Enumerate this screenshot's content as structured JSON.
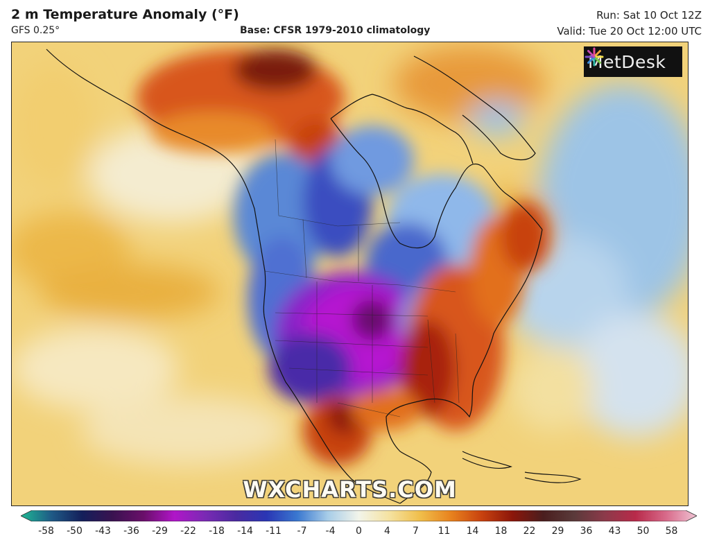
{
  "header": {
    "title": "2 m Temperature Anomaly (°F)",
    "model": "GFS 0.25°",
    "base": "Base: CFSR 1979-2010 climatology",
    "run": "Run: Sat 10 Oct 12Z",
    "valid": "Valid: Tue 20 Oct 12:00 UTC"
  },
  "logo": {
    "text": "MetDesk",
    "icon": "metdesk-starburst-icon"
  },
  "watermark": "WXCHARTS.COM",
  "map": {
    "region": "North America",
    "variable": "2 m temperature anomaly",
    "anomaly_areas": [
      {
        "region": "Central US / Great Plains",
        "sign": "cold",
        "color": "#b016c8"
      },
      {
        "region": "Western Canada and Northwest US",
        "sign": "cold",
        "color": "#3a58c8"
      },
      {
        "region": "Eastern Seaboard (Appalachians)",
        "sign": "warm",
        "color": "#b82a0a"
      },
      {
        "region": "Northern Mexico",
        "sign": "warm",
        "color": "#c8420f"
      },
      {
        "region": "Alaska / Beaufort",
        "sign": "warm",
        "color": "#c8420f"
      },
      {
        "region": "North Atlantic",
        "sign": "cold",
        "color": "#9dc4e6"
      }
    ]
  },
  "colorbar": {
    "ticks": [
      "-58",
      "-50",
      "-43",
      "-36",
      "-29",
      "-22",
      "-18",
      "-14",
      "-11",
      "-7",
      "-4",
      "0",
      "4",
      "7",
      "11",
      "14",
      "18",
      "22",
      "29",
      "36",
      "43",
      "50",
      "58"
    ],
    "colors": [
      "#1fb894",
      "#1f5a86",
      "#141f5a",
      "#3a1250",
      "#6a0f6a",
      "#b016c8",
      "#7a2ab4",
      "#4a2aa0",
      "#2a36b4",
      "#3a78d0",
      "#a8cde8",
      "#f2f4ea",
      "#f5e2a0",
      "#f0be4a",
      "#e8821e",
      "#c8420f",
      "#8c160a",
      "#4a1e1e",
      "#5a3a3a",
      "#8c3a4a",
      "#b82a4a",
      "#d86a8a",
      "#f0c4d4"
    ]
  }
}
